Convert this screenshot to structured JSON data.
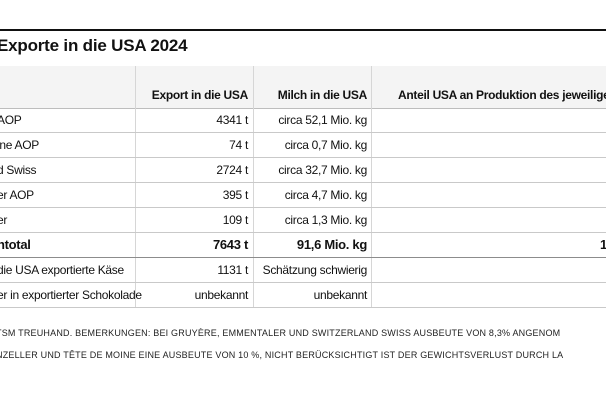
{
  "title": "Exporte in die USA 2024",
  "table": {
    "headers": {
      "name": "",
      "export": "Export in die USA",
      "milk": "Milch in die USA",
      "share": "Anteil USA an Produktion des jeweilige"
    },
    "rows": [
      {
        "name": "AOP",
        "export": "4341 t",
        "milk": "circa 52,1 Mio. kg",
        "share": ""
      },
      {
        "name": "ine AOP",
        "export": "74 t",
        "milk": "circa 0,7 Mio. kg",
        "share": ""
      },
      {
        "name": "d Swiss",
        "export": "2724 t",
        "milk": "circa 32,7 Mio. kg",
        "share": ""
      },
      {
        "name": "er AOP",
        "export": "395 t",
        "milk": "circa 4,7 Mio. kg",
        "share": ""
      },
      {
        "name": "er",
        "export": "109 t",
        "milk": "circa 1,3 Mio. kg",
        "share": ""
      },
      {
        "name": "ntotal",
        "export": "7643 t",
        "milk": "91,6 Mio. kg",
        "share": "1"
      },
      {
        "name": "die USA exportierte Käse",
        "export": "1131 t",
        "milk": "Schätzung schwierig",
        "share": ""
      },
      {
        "name": "er in exportierter Schokolade",
        "export": "unbekannt",
        "milk": "unbekannt",
        "share": ""
      }
    ]
  },
  "notes": {
    "line1": "TSM TREUHAND. BEMERKUNGEN: BEI GRUYÈRE, EMMENTALER UND SWITZERLAND SWISS AUSBEUTE VON 8,3% ANGENOM",
    "line2": "NZELLER UND TÊTE DE MOINE EINE AUSBEUTE VON 10 %, NICHT BERÜCKSICHTIGT IST DER GEWICHTSVERLUST DURCH LA"
  }
}
